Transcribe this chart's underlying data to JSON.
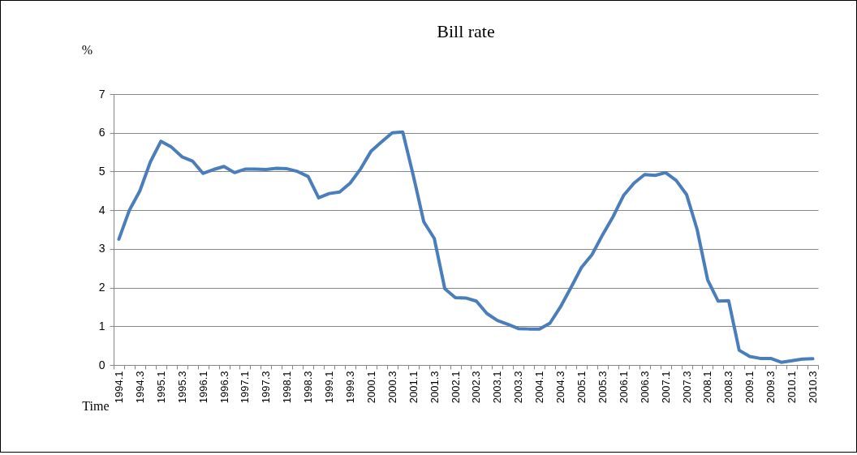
{
  "chart_data": {
    "type": "line",
    "title": "Bill rate",
    "ylabel": "%",
    "xlabel": "Time",
    "categories": [
      "1994.1",
      null,
      "1994.3",
      null,
      "1995.1",
      null,
      "1995.3",
      null,
      "1996.1",
      null,
      "1996.3",
      null,
      "1997.1",
      null,
      "1997.3",
      null,
      "1998.1",
      null,
      "1998.3",
      null,
      "1999.1",
      null,
      "1999.3",
      null,
      "2000.1",
      null,
      "2000.3",
      null,
      "2001.1",
      null,
      "2001.3",
      null,
      "2002.1",
      null,
      "2002.3",
      null,
      "2003.1",
      null,
      "2003.3",
      null,
      "2004.1",
      null,
      "2004.3",
      null,
      "2005.1",
      null,
      "2005.3",
      null,
      "2006.1",
      null,
      "2006.3",
      null,
      "2007.1",
      null,
      "2007.3",
      null,
      "2008.1",
      null,
      "2008.3",
      null,
      "2009.1",
      null,
      "2009.3",
      null,
      "2010.1",
      null,
      "2010.3"
    ],
    "series": [
      {
        "color": "#4a7ebb",
        "values": [
          3.25,
          4.0,
          4.5,
          5.25,
          5.78,
          5.63,
          5.38,
          5.27,
          4.95,
          5.05,
          5.13,
          4.97,
          5.06,
          5.06,
          5.05,
          5.08,
          5.07,
          5.0,
          4.87,
          4.32,
          4.43,
          4.47,
          4.7,
          5.07,
          5.53,
          5.77,
          6.0,
          6.02,
          4.9,
          3.7,
          3.27,
          1.97,
          1.74,
          1.73,
          1.65,
          1.33,
          1.15,
          1.05,
          0.94,
          0.93,
          0.93,
          1.08,
          1.5,
          2.0,
          2.52,
          2.85,
          3.36,
          3.83,
          4.38,
          4.7,
          4.92,
          4.9,
          4.97,
          4.77,
          4.4,
          3.5,
          2.2,
          1.65,
          1.66,
          0.38,
          0.22,
          0.17,
          0.17,
          0.07,
          0.11,
          0.15,
          0.16
        ]
      }
    ],
    "ylim": [
      0,
      7
    ],
    "yticks": [
      0,
      1,
      2,
      3,
      4,
      5,
      6,
      7
    ],
    "grid": "y"
  }
}
